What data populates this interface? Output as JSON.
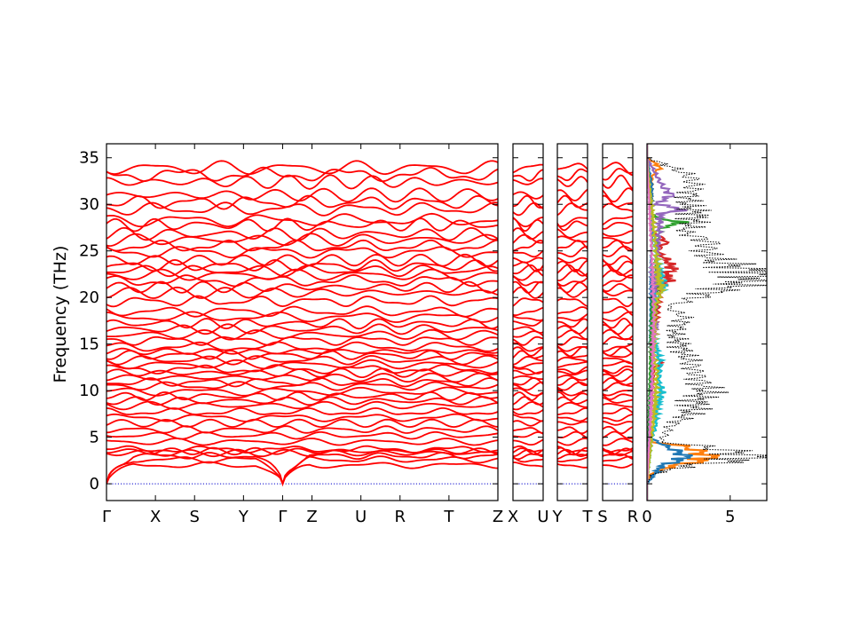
{
  "chart_data": {
    "type": "line",
    "title": "",
    "ylabel": "Frequency (THz)",
    "ylim": [
      -1.8,
      36.5
    ],
    "yticks": [
      0,
      5,
      10,
      15,
      20,
      25,
      30,
      35
    ],
    "band_color": "#ff0000",
    "zero_line_color": "#0000cc",
    "band_panels": [
      {
        "xlim": [
          0,
          8
        ],
        "high_symmetry_points": [
          {
            "label": "Γ",
            "x": 0
          },
          {
            "label": "X",
            "x": 1
          },
          {
            "label": "S",
            "x": 1.8
          },
          {
            "label": "Y",
            "x": 2.8
          },
          {
            "label": "Γ",
            "x": 3.6
          },
          {
            "label": "Z",
            "x": 4.2
          },
          {
            "label": "U",
            "x": 5.2
          },
          {
            "label": "R",
            "x": 6.0
          },
          {
            "label": "T",
            "x": 7.0
          },
          {
            "label": "Z",
            "x": 8.0
          }
        ]
      },
      {
        "xlim": [
          0,
          1
        ],
        "high_symmetry_points": [
          {
            "label": "X",
            "x": 0
          },
          {
            "label": "U",
            "x": 1
          }
        ]
      },
      {
        "xlim": [
          0,
          1
        ],
        "high_symmetry_points": [
          {
            "label": "Y",
            "x": 0
          },
          {
            "label": "T",
            "x": 1
          }
        ]
      },
      {
        "xlim": [
          0,
          1
        ],
        "high_symmetry_points": [
          {
            "label": "S",
            "x": 0
          },
          {
            "label": "R",
            "x": 1
          }
        ]
      }
    ],
    "band_levels_thz": [
      2.0,
      2.6,
      3.0,
      3.3,
      3.5,
      3.7,
      4.5,
      5.2,
      5.8,
      6.5,
      7.1,
      7.7,
      8.4,
      8.9,
      9.4,
      9.9,
      10.5,
      10.9,
      11.4,
      11.9,
      12.3,
      12.8,
      13.3,
      13.8,
      14.2,
      14.7,
      15.4,
      16.0,
      16.6,
      17.2,
      17.9,
      18.5,
      19.6,
      20.5,
      21.1,
      21.8,
      22.4,
      22.9,
      23.4,
      24.0,
      24.9,
      25.5,
      26.2,
      26.8,
      27.8,
      28.3,
      29.5,
      30.2,
      31.0,
      32.4,
      33.2,
      33.9
    ],
    "dos_panel": {
      "xlim": [
        0,
        7.2
      ],
      "xticks": [
        0,
        5
      ],
      "total_color": "#000000",
      "partial_colors": [
        "#ff7f0e",
        "#1f77b4",
        "#2ca02c",
        "#d62728",
        "#9467bd",
        "#17becf",
        "#bcbd22",
        "#e377c2"
      ],
      "total_dos": [
        [
          0.0,
          0.0
        ],
        [
          1.0,
          0.3
        ],
        [
          2.0,
          2.5
        ],
        [
          2.5,
          5.5
        ],
        [
          3.0,
          6.5
        ],
        [
          3.5,
          5.0
        ],
        [
          4.0,
          3.5
        ],
        [
          4.5,
          0.8
        ],
        [
          5.0,
          1.0
        ],
        [
          6.0,
          1.3
        ],
        [
          7.0,
          2.1
        ],
        [
          8.0,
          2.8
        ],
        [
          9.0,
          3.0
        ],
        [
          10.0,
          3.6
        ],
        [
          11.0,
          3.2
        ],
        [
          12.0,
          2.9
        ],
        [
          13.0,
          2.6
        ],
        [
          14.0,
          2.2
        ],
        [
          15.0,
          2.0
        ],
        [
          16.0,
          1.6
        ],
        [
          17.0,
          2.0
        ],
        [
          18.0,
          2.2
        ],
        [
          19.0,
          1.2
        ],
        [
          20.0,
          3.0
        ],
        [
          21.0,
          4.8
        ],
        [
          22.0,
          6.5
        ],
        [
          22.5,
          7.0
        ],
        [
          23.0,
          6.0
        ],
        [
          24.0,
          4.0
        ],
        [
          25.0,
          3.5
        ],
        [
          26.0,
          3.8
        ],
        [
          27.0,
          2.2
        ],
        [
          28.0,
          2.8
        ],
        [
          29.0,
          3.0
        ],
        [
          30.0,
          2.4
        ],
        [
          31.0,
          2.6
        ],
        [
          32.0,
          2.8
        ],
        [
          33.0,
          2.6
        ],
        [
          34.0,
          1.5
        ],
        [
          35.0,
          0.0
        ]
      ],
      "partial_dos": [
        [
          [
            0.0,
            0.0
          ],
          [
            1.0,
            0.2
          ],
          [
            2.0,
            1.6
          ],
          [
            2.5,
            3.4
          ],
          [
            3.0,
            3.8
          ],
          [
            3.5,
            3.0
          ],
          [
            4.0,
            2.4
          ],
          [
            4.5,
            0.2
          ],
          [
            33.0,
            0.3
          ],
          [
            34.0,
            0.8
          ],
          [
            35.0,
            0.0
          ]
        ],
        [
          [
            0.0,
            0.0
          ],
          [
            2.0,
            0.9
          ],
          [
            2.5,
            2.0
          ],
          [
            3.0,
            2.4
          ],
          [
            3.5,
            1.8
          ],
          [
            4.0,
            1.2
          ],
          [
            5.0,
            0.1
          ],
          [
            12.0,
            0.3
          ],
          [
            15.0,
            0.2
          ],
          [
            32.0,
            0.3
          ],
          [
            35.0,
            0.0
          ]
        ],
        [
          [
            0.0,
            0.0
          ],
          [
            20.0,
            0.3
          ],
          [
            21.0,
            0.7
          ],
          [
            22.0,
            0.5
          ],
          [
            26.0,
            0.6
          ],
          [
            27.5,
            0.8
          ],
          [
            28.0,
            2.2
          ],
          [
            28.5,
            0.6
          ],
          [
            29.0,
            0.3
          ],
          [
            35.0,
            0.0
          ]
        ],
        [
          [
            0.0,
            0.0
          ],
          [
            12.5,
            0.4
          ],
          [
            13.0,
            1.0
          ],
          [
            13.5,
            0.3
          ],
          [
            21.0,
            0.8
          ],
          [
            22.0,
            1.4
          ],
          [
            22.5,
            1.1
          ],
          [
            23.0,
            1.6
          ],
          [
            24.0,
            1.2
          ],
          [
            25.0,
            0.6
          ],
          [
            26.0,
            1.2
          ],
          [
            27.0,
            0.4
          ],
          [
            35.0,
            0.0
          ]
        ],
        [
          [
            0.0,
            0.0
          ],
          [
            16.0,
            0.4
          ],
          [
            17.0,
            0.6
          ],
          [
            18.0,
            0.4
          ],
          [
            29.0,
            0.8
          ],
          [
            29.5,
            2.3
          ],
          [
            30.0,
            0.5
          ],
          [
            31.0,
            1.5
          ],
          [
            32.0,
            0.9
          ],
          [
            33.0,
            0.6
          ],
          [
            35.0,
            0.0
          ]
        ],
        [
          [
            0.0,
            0.0
          ],
          [
            5.0,
            0.3
          ],
          [
            6.0,
            0.5
          ],
          [
            8.0,
            0.6
          ],
          [
            10.0,
            0.9
          ],
          [
            11.0,
            0.7
          ],
          [
            13.0,
            0.8
          ],
          [
            15.0,
            0.5
          ],
          [
            17.0,
            0.4
          ],
          [
            20.0,
            0.6
          ],
          [
            21.0,
            1.0
          ],
          [
            25.0,
            0.5
          ],
          [
            35.0,
            0.0
          ]
        ],
        [
          [
            0.0,
            0.0
          ],
          [
            7.0,
            0.4
          ],
          [
            9.0,
            0.5
          ],
          [
            12.0,
            0.6
          ],
          [
            14.0,
            0.4
          ],
          [
            19.0,
            0.5
          ],
          [
            21.0,
            0.9
          ],
          [
            22.0,
            0.7
          ],
          [
            35.0,
            0.0
          ]
        ],
        [
          [
            0.0,
            0.0
          ],
          [
            10.0,
            0.3
          ],
          [
            18.0,
            0.4
          ],
          [
            24.0,
            0.3
          ],
          [
            35.0,
            0.0
          ]
        ]
      ]
    }
  }
}
